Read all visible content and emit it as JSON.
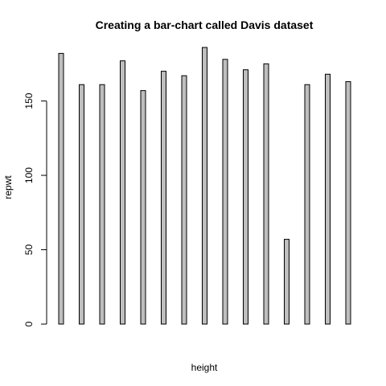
{
  "chart_data": {
    "type": "bar",
    "title": "Creating a bar-chart called Davis dataset",
    "xlabel": "height",
    "ylabel": "repwt",
    "values": [
      182,
      161,
      161,
      177,
      157,
      170,
      167,
      186,
      178,
      171,
      175,
      57,
      161,
      168,
      163
    ],
    "ylim": [
      0,
      186
    ],
    "yticks": [
      0,
      50,
      100,
      150
    ],
    "grid": false,
    "bar_fill": "#bebebe",
    "bar_stroke": "#000000"
  }
}
